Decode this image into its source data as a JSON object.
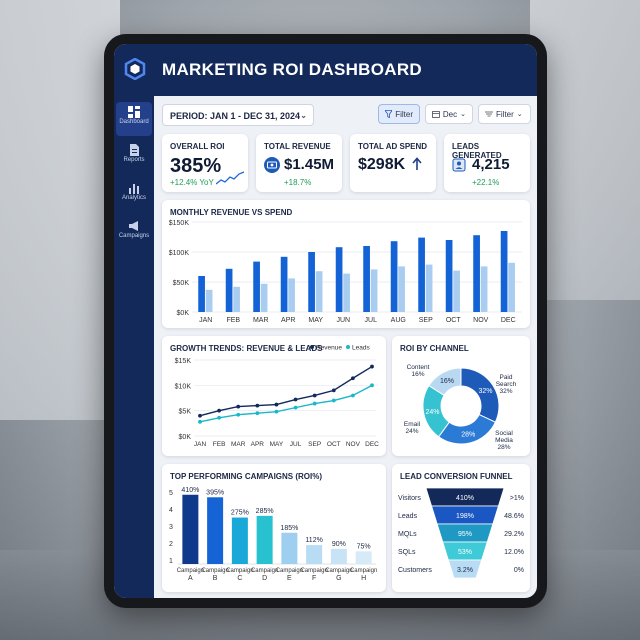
{
  "header": {
    "title": "MARKETING ROI DASHBOARD"
  },
  "sidebar": {
    "items": [
      {
        "label": "Dashboard",
        "icon": "dashboard-icon",
        "active": true
      },
      {
        "label": "Reports",
        "icon": "document-icon"
      },
      {
        "label": "Analytics",
        "icon": "bar-chart-icon"
      },
      {
        "label": "Campaigns",
        "icon": "megaphone-icon"
      }
    ]
  },
  "toolbar": {
    "period_label": "PERIOD: JAN 1 - DEC 31, 2024",
    "filter_label": "Filter",
    "date_label": "Dec",
    "filter2_label": "Filter"
  },
  "kpis": [
    {
      "label": "OVERALL ROI",
      "value": "385%",
      "change": "+12.4% YoY"
    },
    {
      "label": "TOTAL REVENUE",
      "value": "$1.45M",
      "change": "+18.7%"
    },
    {
      "label": "TOTAL AD SPEND",
      "value": "$298K",
      "change": ""
    },
    {
      "label": "LEADS GENERATED",
      "value": "4,215",
      "change": "+22.1%"
    }
  ],
  "chart_data": [
    {
      "type": "bar",
      "title": "MONTHLY REVENUE VS SPEND",
      "categories": [
        "JAN",
        "FEB",
        "MAR",
        "APR",
        "MAY",
        "JUN",
        "JUL",
        "AUG",
        "SEP",
        "OCT",
        "NOV",
        "DEC"
      ],
      "series": [
        {
          "values": [
            60,
            72,
            84,
            92,
            100,
            108,
            110,
            118,
            124,
            120,
            128,
            135
          ],
          "color": "#1463d6"
        },
        {
          "values": [
            37,
            42,
            47,
            56,
            68,
            64,
            71,
            76,
            79,
            69,
            76,
            82
          ],
          "color": "#a9cdf0"
        }
      ],
      "yticks": [
        "$0K",
        "$50K",
        "$100K",
        "$150K"
      ],
      "ylim": [
        0,
        150
      ]
    },
    {
      "type": "line",
      "title": "GROWTH TRENDS: REVENUE & LEADS",
      "categories": [
        "JAN",
        "FEB",
        "MAR",
        "APR",
        "MAY",
        "JUL",
        "SEP",
        "OCT",
        "NOV",
        "DEC"
      ],
      "series": [
        {
          "name": "Revenue",
          "values": [
            4.0,
            5.0,
            5.8,
            6.0,
            6.2,
            7.2,
            8.0,
            9.0,
            11.4,
            13.7
          ],
          "color": "#12295a"
        },
        {
          "name": "Leads",
          "values": [
            2.8,
            3.6,
            4.2,
            4.5,
            4.8,
            5.6,
            6.4,
            7.0,
            8.0,
            10.0
          ],
          "color": "#19b8c8"
        }
      ],
      "yticks": [
        "$0K",
        "$5K",
        "$10K",
        "$15K"
      ],
      "ylim": [
        0,
        15
      ]
    },
    {
      "type": "pie",
      "title": "ROI BY CHANNEL",
      "slices": [
        {
          "label": "Paid Search",
          "value": 32,
          "color": "#1e5ab8"
        },
        {
          "label": "Social Media",
          "value": 28,
          "color": "#2b7ad6"
        },
        {
          "label": "Email",
          "value": 24,
          "color": "#35c3d1"
        },
        {
          "label": "Content",
          "value": 16,
          "color": "#b9d9f2"
        }
      ]
    },
    {
      "type": "bar",
      "title": "TOP PERFORMING CAMPAIGNS (ROI%)",
      "categories": [
        "Campaign A",
        "Campaign B",
        "Campaign C",
        "Campaign D",
        "Campaign E",
        "Campaign F",
        "Campaign G",
        "Campaign H"
      ],
      "values": [
        410,
        395,
        275,
        285,
        185,
        112,
        90,
        75
      ],
      "data_labels": [
        "410%",
        "395%",
        "275%",
        "285%",
        "185%",
        "112%",
        "90%",
        "75%"
      ],
      "colors": [
        "#0f3a8c",
        "#1663d6",
        "#1aa8d8",
        "#27c1d0",
        "#9ecff0",
        "#b8dcf3",
        "#c8e3f6",
        "#d6eaf8"
      ],
      "ylim": [
        0,
        450
      ],
      "yticks": [
        "1",
        "2",
        "3",
        "4",
        "5"
      ]
    },
    {
      "type": "funnel",
      "title": "LEAD CONVERSION FUNNEL",
      "stages": [
        {
          "label": "Visitors",
          "value": "410%",
          "rate": ">1%",
          "color": "#12295a"
        },
        {
          "label": "Leads",
          "value": "198%",
          "rate": "48.6%",
          "color": "#1a57c2"
        },
        {
          "label": "MQLs",
          "value": "95%",
          "rate": "29.2%",
          "color": "#1f98c4"
        },
        {
          "label": "SQLs",
          "value": "53%",
          "rate": "12.0%",
          "color": "#3ecad6"
        },
        {
          "label": "Customers",
          "value": "3.2%",
          "rate": "0%",
          "color": "#b9dcf5"
        }
      ]
    }
  ]
}
